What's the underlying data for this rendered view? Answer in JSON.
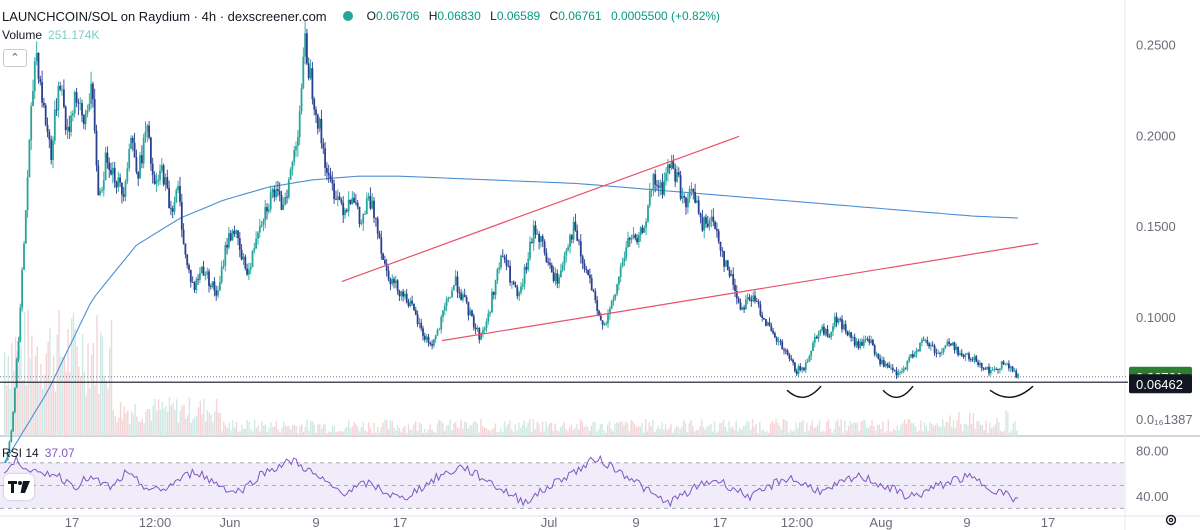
{
  "header": {
    "symbol": "LAUNCHCOIN/SOL on Raydium · 4h · dexscreener.com",
    "status_color": "#26a69a",
    "ohlc": {
      "o_label": "O",
      "o": "0.06706",
      "h_label": "H",
      "h": "0.06830",
      "l_label": "L",
      "l": "0.06589",
      "c_label": "C",
      "c": "0.06761",
      "change": "0.0005500 (+0.82%)"
    },
    "volume_label": "Volume",
    "volume_value": "251.174K",
    "collapse_icon": "chevron-up-icon"
  },
  "rsi": {
    "label": "RSI 14",
    "value": "37.07"
  },
  "colors": {
    "up": "#26a69a",
    "down": "#2a3f8f",
    "ma": "#4c8fd6",
    "trendline": "#e8506b",
    "rsi": "#7e57c2",
    "price_badge": "#2e7d32",
    "support_badge": "#131722"
  },
  "chart_data": [
    {
      "type": "line",
      "title": "",
      "price_axis": {
        "ticks": [
          "0.2500",
          "0.2000",
          "0.1500",
          "0.1000"
        ],
        "tick_values": [
          0.25,
          0.2,
          0.15,
          0.1
        ],
        "ylim": [
          0.035,
          0.275
        ]
      },
      "bottom_tick_label": "0.0₁₆1387",
      "x_ticks": [
        "17",
        "12:00",
        "Jun",
        "9",
        "17",
        "Jul",
        "9",
        "17",
        "12:00",
        "Aug",
        "9",
        "17"
      ],
      "series": [
        {
          "values": [
            0.0155,
            0.04,
            0.1,
            0.18,
            0.25,
            0.215,
            0.19,
            0.235,
            0.2,
            0.225,
            0.205,
            0.228,
            0.165,
            0.19,
            0.178,
            0.168,
            0.2,
            0.18,
            0.205,
            0.17,
            0.182,
            0.16,
            0.17,
            0.13,
            0.116,
            0.128,
            0.12,
            0.112,
            0.14,
            0.15,
            0.132,
            0.125,
            0.15,
            0.16,
            0.17,
            0.162,
            0.175,
            0.2,
            0.25,
            0.225,
            0.2,
            0.175,
            0.168,
            0.16,
            0.17,
            0.15,
            0.165,
            0.155,
            0.13,
            0.12,
            0.115,
            0.11,
            0.1,
            0.09,
            0.085,
            0.095,
            0.11,
            0.12,
            0.11,
            0.1,
            0.09,
            0.098,
            0.12,
            0.135,
            0.12,
            0.11,
            0.13,
            0.15,
            0.14,
            0.125,
            0.12,
            0.14,
            0.15,
            0.13,
            0.12,
            0.1,
            0.098,
            0.11,
            0.13,
            0.145,
            0.14,
            0.155,
            0.175,
            0.17,
            0.185,
            0.178,
            0.16,
            0.172,
            0.15,
            0.155,
            0.148,
            0.13,
            0.12,
            0.105,
            0.112,
            0.108,
            0.1,
            0.09,
            0.085,
            0.078,
            0.071,
            0.072,
            0.085,
            0.095,
            0.09,
            0.1,
            0.095,
            0.088,
            0.084,
            0.09,
            0.08,
            0.074,
            0.071,
            0.068,
            0.075,
            0.082,
            0.087,
            0.085,
            0.08,
            0.086,
            0.084,
            0.079,
            0.078,
            0.076,
            0.072,
            0.07,
            0.076,
            0.072,
            0.0676
          ]
        },
        {
          "values": [
            0.02,
            0.06,
            0.11,
            0.14,
            0.155,
            0.165,
            0.172,
            0.176,
            0.178,
            0.178,
            0.177,
            0.176,
            0.175,
            0.174,
            0.172,
            0.17,
            0.168,
            0.166,
            0.164,
            0.162,
            0.16,
            0.158,
            0.156,
            0.155
          ]
        }
      ],
      "trendlines": [
        {
          "from": [
            "~May 20",
            0.12
          ],
          "to": [
            "~Jul 17",
            0.2
          ]
        },
        {
          "from": [
            "~May 23",
            0.0875
          ],
          "to": [
            "~Aug 20",
            0.141
          ]
        }
      ],
      "horizontal_levels": [
        0.06761,
        0.06462
      ],
      "price_label": "0.06761",
      "support_label": "0.06462",
      "annotations": [
        "hand-drawn curved marks below the lows near the 0.06462 line"
      ]
    },
    {
      "type": "line",
      "title": "",
      "ylabel": "RSI 14",
      "y_ticks": [
        "80.00",
        "40.00"
      ],
      "tick_values": [
        80,
        40
      ],
      "ylim": [
        25,
        90
      ],
      "band": [
        30,
        70
      ],
      "midline": 50,
      "values": [
        60,
        72,
        66,
        58,
        62,
        55,
        50,
        57,
        52,
        48,
        60,
        54,
        47,
        45,
        52,
        58,
        63,
        55,
        50,
        44,
        48,
        58,
        64,
        68,
        72,
        65,
        57,
        50,
        44,
        47,
        52,
        48,
        42,
        38,
        45,
        51,
        58,
        62,
        67,
        60,
        55,
        48,
        42,
        36,
        41,
        48,
        55,
        61,
        66,
        74,
        69,
        62,
        57,
        48,
        40,
        35,
        40,
        46,
        52,
        55,
        50,
        44,
        40,
        46,
        53,
        57,
        52,
        48,
        44,
        50,
        55,
        58,
        54,
        49,
        45,
        40,
        43,
        48,
        52,
        56,
        57,
        52,
        47,
        42,
        37
      ]
    }
  ]
}
